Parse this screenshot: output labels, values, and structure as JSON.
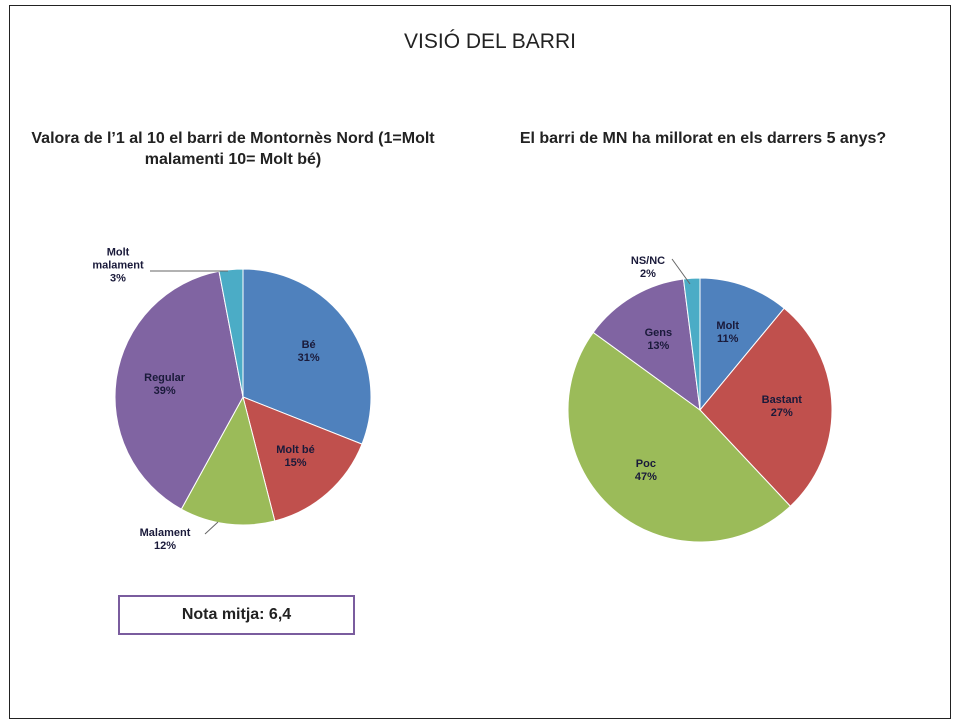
{
  "title": "VISIÓ DEL BARRI",
  "note": "Nota mitja: 6,4",
  "chart_data": [
    {
      "type": "pie",
      "title": "Valora de l’1 al 10 el barri de Montornès Nord (1=Molt malamenti 10= Molt bé)",
      "categories": [
        "Bé",
        "Molt bé",
        "Malament",
        "Regular",
        "Molt malament"
      ],
      "values": [
        31,
        15,
        12,
        39,
        3
      ],
      "value_labels": [
        "31%",
        "15%",
        "12%",
        "39%",
        "3%"
      ],
      "colors": [
        "#4f81bd",
        "#c0504d",
        "#9bbb59",
        "#8064a2",
        "#4bacc6"
      ]
    },
    {
      "type": "pie",
      "title": "El barri de MN ha millorat en els darrers 5 anys?",
      "categories": [
        "Molt",
        "Bastant",
        "Poc",
        "Gens",
        "NS/NC"
      ],
      "values": [
        11,
        27,
        47,
        13,
        2
      ],
      "value_labels": [
        "11%",
        "27%",
        "47%",
        "13%",
        "2%"
      ],
      "colors": [
        "#4f81bd",
        "#c0504d",
        "#9bbb59",
        "#8064a2",
        "#4bacc6"
      ]
    }
  ]
}
